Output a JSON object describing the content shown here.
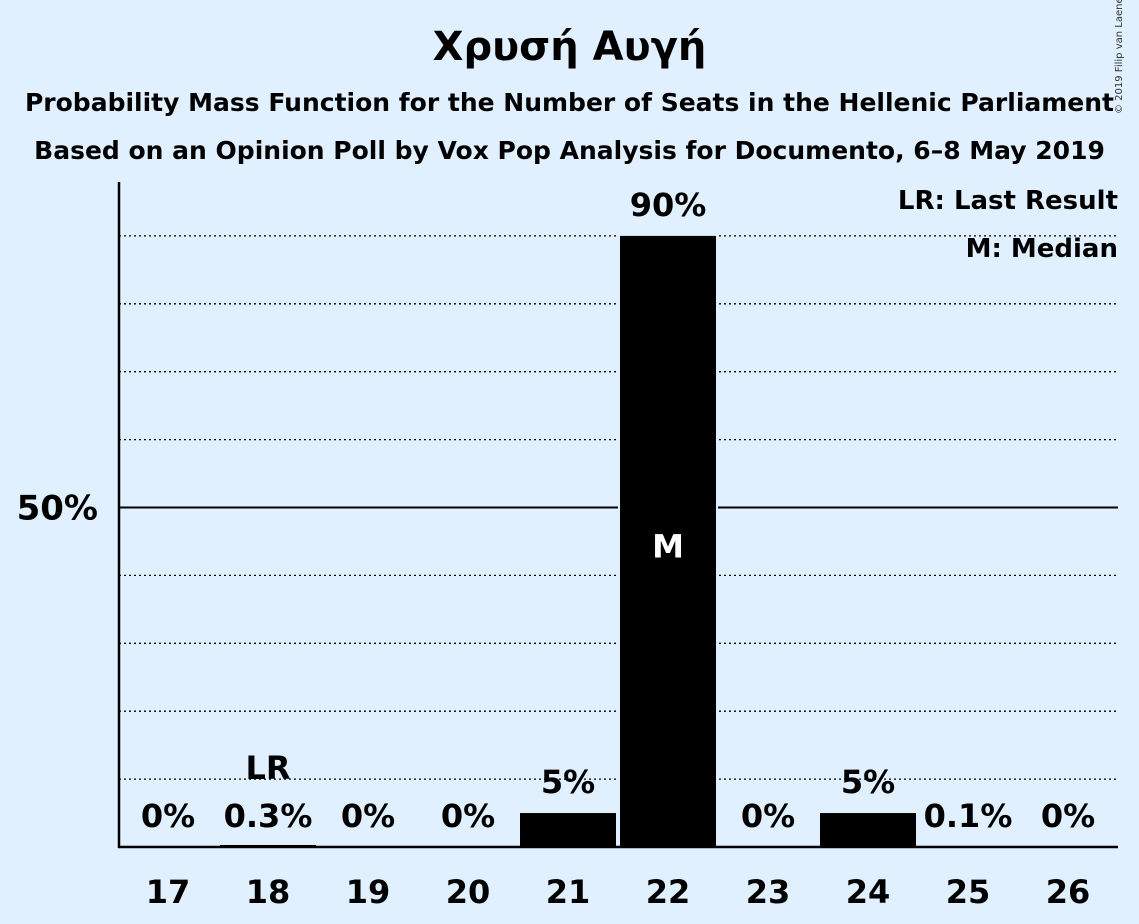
{
  "title": "Χρυσή Αυγή",
  "subtitle_1": "Probability Mass Function for the Number of Seats in the Hellenic Parliament",
  "subtitle_2": "Based on an Opinion Poll by Vox Pop Analysis for Documento, 6–8 May 2019",
  "copyright": "© 2019 Filip van Laenen",
  "legend": {
    "last_result": "LR: Last Result",
    "median": "M: Median",
    "position": "top-right"
  },
  "colors": {
    "background": "#e1f0ff",
    "bar": "#000000",
    "axis": "#000000"
  },
  "chart_data": {
    "type": "bar",
    "categories": [
      "17",
      "18",
      "19",
      "20",
      "21",
      "22",
      "23",
      "24",
      "25",
      "26"
    ],
    "values": [
      0,
      0.3,
      0,
      0,
      5,
      90,
      0,
      5,
      0.1,
      0
    ],
    "bar_labels": [
      "0%",
      "0.3%",
      "0%",
      "0%",
      "5%",
      "90%",
      "0%",
      "5%",
      "0.1%",
      "0%"
    ],
    "ylim": [
      0,
      100
    ],
    "yticks": [
      {
        "value": 50,
        "label": "50%"
      }
    ],
    "minor_gridlines": [
      10,
      20,
      30,
      40,
      60,
      70,
      80,
      90
    ],
    "grid": true,
    "last_result": {
      "category": "18",
      "label": "LR"
    },
    "median": {
      "category": "22",
      "label": "M"
    }
  }
}
